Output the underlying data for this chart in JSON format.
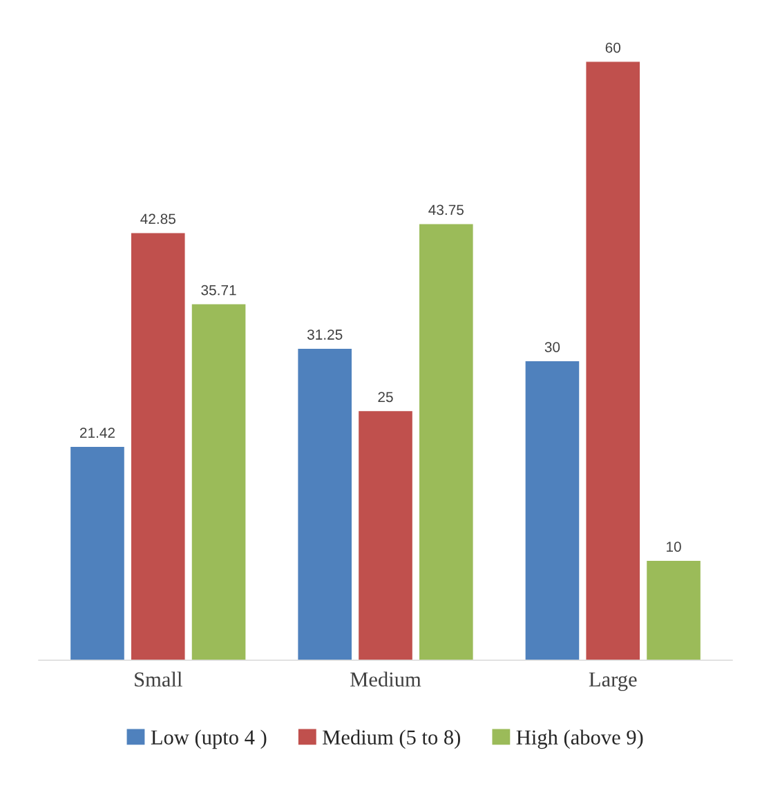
{
  "chart_data": {
    "type": "bar",
    "categories": [
      "Small",
      "Medium",
      "Large"
    ],
    "series": [
      {
        "name": "Low (upto 4 )",
        "color": "#4f81bd",
        "values": [
          21.42,
          31.25,
          30
        ]
      },
      {
        "name": "Medium (5 to 8)",
        "color": "#c0504d",
        "values": [
          42.85,
          25,
          60
        ]
      },
      {
        "name": "High (above 9)",
        "color": "#9bbb59",
        "values": [
          35.71,
          43.75,
          10
        ]
      }
    ],
    "data_labels": true,
    "grid": false,
    "legend": "bottom"
  }
}
